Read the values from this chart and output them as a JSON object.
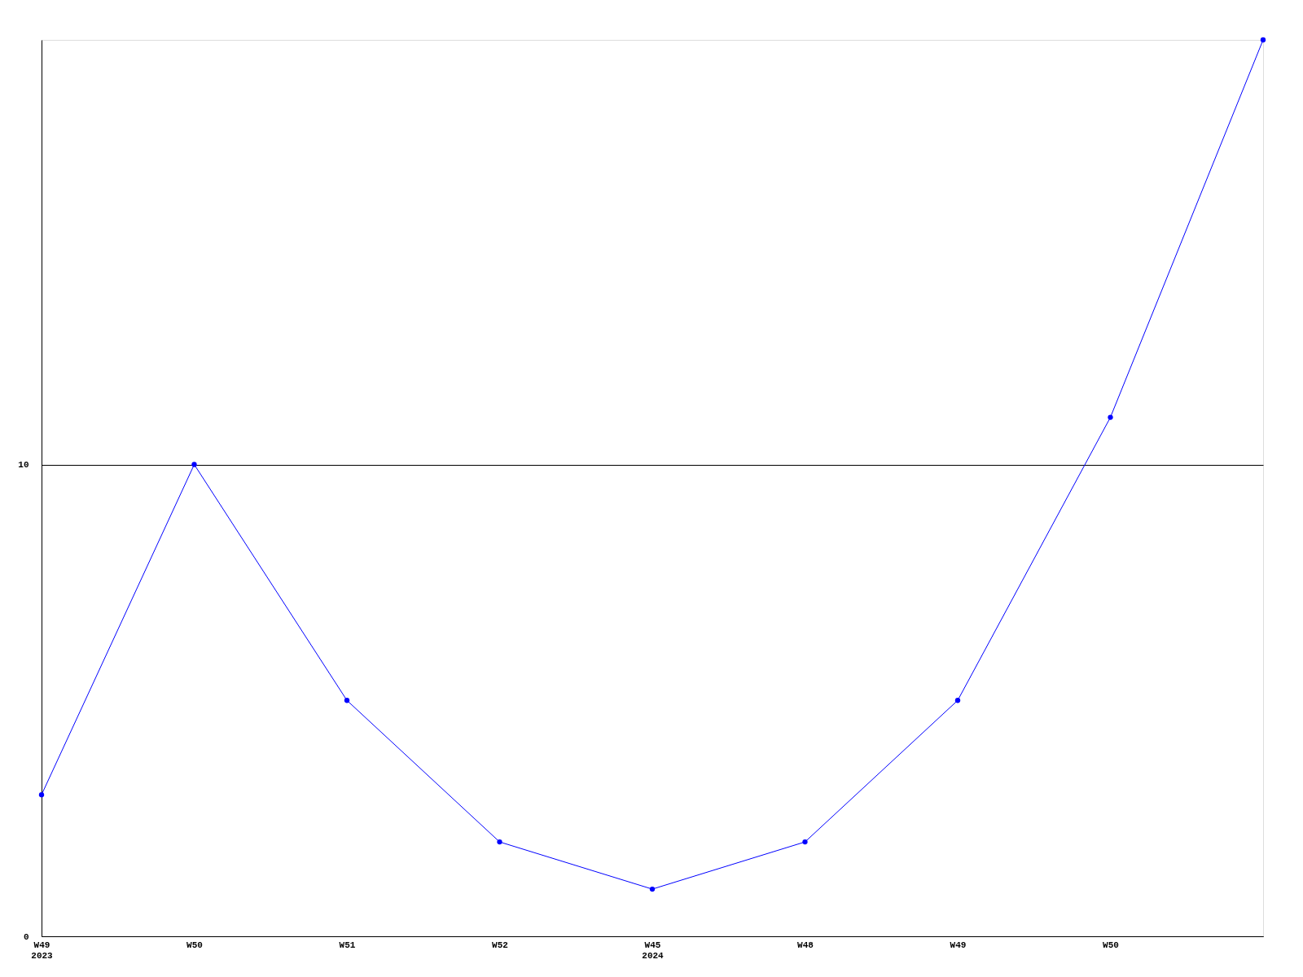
{
  "chart_data": {
    "type": "line",
    "categories": [
      "W49\n2023",
      "W50",
      "W51",
      "W52",
      "W45\n2024",
      "W48",
      "W49",
      "W50",
      null
    ],
    "series": [
      {
        "color": "#0000ff",
        "values": [
          3,
          10,
          5,
          2,
          1,
          2,
          5,
          11,
          19
        ]
      }
    ],
    "ylim": [
      0,
      19
    ],
    "yticks": [
      0,
      10
    ],
    "grid": "y",
    "marker": "circle",
    "line_style": "solid"
  }
}
